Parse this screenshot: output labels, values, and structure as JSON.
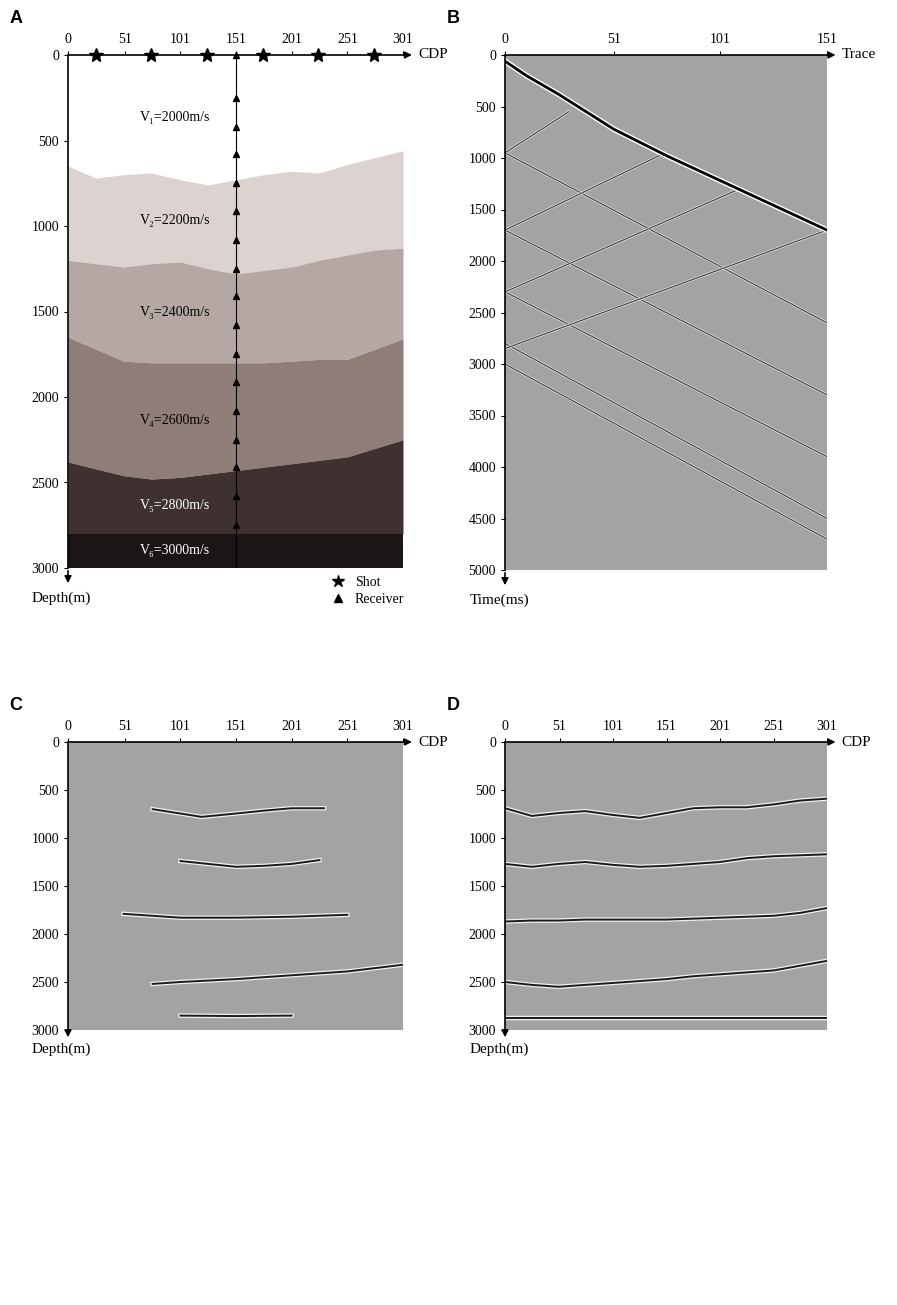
{
  "chart_data": [
    {
      "type": "layered_model",
      "title": "A",
      "x_label": "CDP",
      "y_label": "Depth(m)",
      "xlim": [
        0,
        301
      ],
      "xticks": [
        0,
        51,
        101,
        151,
        201,
        251,
        301
      ],
      "ylim": [
        0,
        3000
      ],
      "yticks": [
        0,
        500,
        1000,
        1500,
        2000,
        2500,
        3000
      ],
      "legend": "lower right",
      "interfaces": {
        "cdp": [
          0,
          25,
          50,
          75,
          101,
          126,
          151,
          176,
          201,
          226,
          251,
          276,
          301
        ],
        "depths": [
          [
            650,
            720,
            700,
            690,
            730,
            760,
            730,
            700,
            680,
            690,
            640,
            600,
            560
          ],
          [
            1200,
            1220,
            1240,
            1220,
            1210,
            1250,
            1280,
            1260,
            1240,
            1200,
            1170,
            1140,
            1130
          ],
          [
            1650,
            1720,
            1790,
            1800,
            1800,
            1800,
            1800,
            1800,
            1790,
            1780,
            1780,
            1720,
            1660
          ],
          [
            2380,
            2420,
            2460,
            2480,
            2470,
            2450,
            2430,
            2410,
            2390,
            2370,
            2350,
            2300,
            2250
          ],
          [
            2800,
            2800,
            2800,
            2800,
            2800,
            2800,
            2800,
            2800,
            2800,
            2800,
            2800,
            2800,
            2800
          ]
        ]
      },
      "layers": [
        {
          "name": "V₁=2000m/s",
          "color": "#ffffff"
        },
        {
          "name": "V₂=2200m/s",
          "color": "#dcd2cf"
        },
        {
          "name": "V₃=2400m/s",
          "color": "#b5a7a3"
        },
        {
          "name": "V₄=2600m/s",
          "color": "#8f7d78"
        },
        {
          "name": "V₅=2800m/s",
          "color": "#3e3130"
        },
        {
          "name": "V₆=3000m/s",
          "color": "#1c1515"
        }
      ],
      "shots": {
        "name": "Shot",
        "cdp": [
          25,
          75,
          125,
          175,
          225,
          275
        ],
        "depth": 0
      },
      "receivers": {
        "name": "Receiver",
        "cdp": 151,
        "depth": [
          0,
          250,
          420,
          580,
          750,
          910,
          1080,
          1250,
          1410,
          1580,
          1750,
          1910,
          2080,
          2250,
          2410,
          2580,
          2750
        ]
      }
    },
    {
      "type": "gather",
      "title": "B",
      "x_label": "Trace",
      "y_label": "Time(ms)",
      "xlim": [
        0,
        151
      ],
      "xticks": [
        0,
        51,
        101,
        151
      ],
      "ylim": [
        0,
        5000
      ],
      "yticks": [
        0,
        500,
        1000,
        1500,
        2000,
        2500,
        3000,
        3500,
        4000,
        4500,
        5000
      ],
      "first_break": {
        "x": [
          0,
          10,
          25,
          51,
          76,
          101,
          126,
          151
        ],
        "t": [
          60,
          200,
          380,
          720,
          980,
          1220,
          1460,
          1700
        ]
      },
      "events": [
        {
          "x": [
            0,
            151
          ],
          "t": [
            950,
            2600
          ]
        },
        {
          "x": [
            0,
            151
          ],
          "t": [
            1700,
            3300
          ]
        },
        {
          "x": [
            0,
            151
          ],
          "t": [
            2300,
            3900
          ]
        },
        {
          "x": [
            0,
            151
          ],
          "t": [
            2800,
            4500
          ]
        },
        {
          "x": [
            0,
            151
          ],
          "t": [
            3000,
            4700
          ]
        },
        {
          "x": [
            0,
            30
          ],
          "t": [
            950,
            550
          ]
        },
        {
          "x": [
            0,
            75
          ],
          "t": [
            1700,
            950
          ]
        },
        {
          "x": [
            0,
            110
          ],
          "t": [
            2300,
            1300
          ]
        },
        {
          "x": [
            0,
            151
          ],
          "t": [
            2850,
            1700
          ]
        }
      ]
    },
    {
      "type": "image",
      "title": "C",
      "x_label": "CDP",
      "y_label": "Depth(m)",
      "xlim": [
        0,
        301
      ],
      "xticks": [
        0,
        51,
        101,
        151,
        201,
        251,
        301
      ],
      "ylim": [
        0,
        3000
      ],
      "yticks": [
        0,
        500,
        1000,
        1500,
        2000,
        2500,
        3000
      ],
      "reflectors": [
        {
          "cdp": [
            76,
            101,
            120,
            151,
            176,
            201,
            230
          ],
          "depth": [
            700,
            745,
            780,
            745,
            715,
            690,
            690
          ]
        },
        {
          "cdp": [
            101,
            126,
            151,
            176,
            201,
            226
          ],
          "depth": [
            1240,
            1270,
            1300,
            1290,
            1270,
            1230
          ]
        },
        {
          "cdp": [
            50,
            101,
            151,
            201,
            251
          ],
          "depth": [
            1790,
            1830,
            1830,
            1820,
            1800
          ]
        },
        {
          "cdp": [
            76,
            101,
            151,
            201,
            251,
            301
          ],
          "depth": [
            2520,
            2500,
            2470,
            2430,
            2390,
            2320
          ]
        },
        {
          "cdp": [
            101,
            151,
            201
          ],
          "depth": [
            2850,
            2855,
            2850
          ]
        }
      ]
    },
    {
      "type": "image",
      "title": "D",
      "x_label": "CDP",
      "y_label": "Depth(m)",
      "xlim": [
        0,
        301
      ],
      "xticks": [
        0,
        51,
        101,
        151,
        201,
        251,
        301
      ],
      "ylim": [
        0,
        3000
      ],
      "yticks": [
        0,
        500,
        1000,
        1500,
        2000,
        2500,
        3000
      ],
      "reflectors": [
        {
          "cdp": [
            0,
            25,
            50,
            75,
            101,
            126,
            151,
            176,
            201,
            226,
            251,
            276,
            301
          ],
          "depth": [
            690,
            770,
            740,
            720,
            760,
            790,
            740,
            690,
            680,
            680,
            650,
            610,
            590
          ]
        },
        {
          "cdp": [
            0,
            25,
            50,
            75,
            101,
            126,
            151,
            176,
            201,
            226,
            251,
            276,
            301
          ],
          "depth": [
            1270,
            1300,
            1270,
            1250,
            1280,
            1300,
            1290,
            1270,
            1250,
            1210,
            1190,
            1180,
            1170
          ]
        },
        {
          "cdp": [
            0,
            25,
            50,
            75,
            101,
            126,
            151,
            176,
            201,
            226,
            251,
            276,
            301
          ],
          "depth": [
            1870,
            1860,
            1860,
            1850,
            1850,
            1850,
            1850,
            1840,
            1830,
            1820,
            1810,
            1780,
            1730
          ]
        },
        {
          "cdp": [
            0,
            25,
            50,
            75,
            101,
            126,
            151,
            176,
            201,
            226,
            251,
            276,
            301
          ],
          "depth": [
            2500,
            2530,
            2550,
            2530,
            2510,
            2490,
            2470,
            2440,
            2420,
            2400,
            2380,
            2330,
            2280
          ]
        },
        {
          "cdp": [
            0,
            25,
            50,
            75,
            101,
            126,
            151,
            176,
            201,
            226,
            251,
            276,
            301
          ],
          "depth": [
            2870,
            2870,
            2870,
            2870,
            2870,
            2870,
            2870,
            2870,
            2870,
            2870,
            2870,
            2870,
            2870
          ]
        }
      ]
    }
  ]
}
